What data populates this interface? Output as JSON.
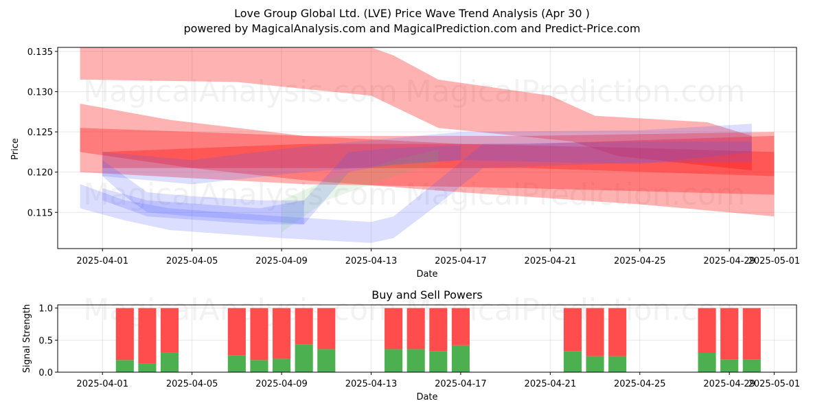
{
  "title_line1": "Love Group Global Ltd. (LVE) Price Wave Trend Analysis (Apr 30 )",
  "title_line2": "powered by MagicalAnalysis.com and MagicalPrediction.com and Predict-Price.com",
  "watermarks": [
    "MagicalAnalysis.com",
    "MagicalPrediction.com"
  ],
  "colors": {
    "red_band": "#ff0000",
    "blue_band": "#4a5cff",
    "green_band": "#66bb66",
    "buy": "#4caf50",
    "sell": "#ff4d4d"
  },
  "chart_data": [
    {
      "type": "area",
      "title": "",
      "xlabel": "Date",
      "ylabel": "Price",
      "x_range": [
        "2025-03-30",
        "2025-05-02"
      ],
      "ylim": [
        0.1105,
        0.1355
      ],
      "grid": true,
      "xticks": [
        "2025-04-01",
        "2025-04-05",
        "2025-04-09",
        "2025-04-13",
        "2025-04-17",
        "2025-04-21",
        "2025-04-25",
        "2025-04-29",
        "2025-05-01"
      ],
      "yticks": [
        0.115,
        0.12,
        0.125,
        0.13,
        0.135
      ],
      "ytick_labels": [
        "0.115",
        "0.120",
        "0.125",
        "0.130",
        "0.135"
      ],
      "bands": [
        {
          "color": "red",
          "opacity": 0.3,
          "upper": [
            [
              "2025-03-31",
              0.1355
            ],
            [
              "2025-04-13",
              0.1355
            ],
            [
              "2025-04-14",
              0.1345
            ],
            [
              "2025-04-16",
              0.1315
            ],
            [
              "2025-04-21",
              0.1295
            ],
            [
              "2025-04-23",
              0.127
            ],
            [
              "2025-04-28",
              0.1262
            ],
            [
              "2025-04-30",
              0.1245
            ]
          ],
          "lower": [
            [
              "2025-03-31",
              0.1315
            ],
            [
              "2025-04-07",
              0.1312
            ],
            [
              "2025-04-13",
              0.1295
            ],
            [
              "2025-04-16",
              0.1255
            ],
            [
              "2025-04-22",
              0.1238
            ],
            [
              "2025-04-24",
              0.122
            ],
            [
              "2025-04-30",
              0.1202
            ]
          ]
        },
        {
          "color": "red",
          "opacity": 0.3,
          "upper": [
            [
              "2025-03-31",
              0.1285
            ],
            [
              "2025-04-04",
              0.1265
            ],
            [
              "2025-04-10",
              0.1245
            ],
            [
              "2025-04-17",
              0.1235
            ],
            [
              "2025-04-25",
              0.123
            ],
            [
              "2025-05-01",
              0.1225
            ]
          ],
          "lower": [
            [
              "2025-03-31",
              0.1225
            ],
            [
              "2025-04-05",
              0.1205
            ],
            [
              "2025-04-10",
              0.119
            ],
            [
              "2025-04-17",
              0.1175
            ],
            [
              "2025-04-25",
              0.116
            ],
            [
              "2025-05-01",
              0.1145
            ]
          ]
        },
        {
          "color": "red",
          "opacity": 0.3,
          "upper": [
            [
              "2025-03-31",
              0.1255
            ],
            [
              "2025-04-10",
              0.1245
            ],
            [
              "2025-04-20",
              0.1245
            ],
            [
              "2025-05-01",
              0.125
            ]
          ],
          "lower": [
            [
              "2025-03-31",
              0.12
            ],
            [
              "2025-04-10",
              0.1185
            ],
            [
              "2025-04-20",
              0.118
            ],
            [
              "2025-05-01",
              0.1172
            ]
          ]
        },
        {
          "color": "red",
          "opacity": 0.3,
          "upper": [
            [
              "2025-04-01",
              0.1225
            ],
            [
              "2025-04-10",
              0.1235
            ],
            [
              "2025-04-20",
              0.1235
            ],
            [
              "2025-05-01",
              0.1245
            ]
          ],
          "lower": [
            [
              "2025-04-01",
              0.1205
            ],
            [
              "2025-04-10",
              0.1205
            ],
            [
              "2025-04-20",
              0.1205
            ],
            [
              "2025-05-01",
              0.1195
            ]
          ]
        },
        {
          "color": "blue",
          "opacity": 0.2,
          "upper": [
            [
              "2025-04-01",
              0.1225
            ],
            [
              "2025-04-05",
              0.1215
            ],
            [
              "2025-04-10",
              0.1232
            ],
            [
              "2025-04-17",
              0.125
            ],
            [
              "2025-04-25",
              0.1252
            ],
            [
              "2025-04-30",
              0.126
            ]
          ],
          "lower": [
            [
              "2025-04-01",
              0.1195
            ],
            [
              "2025-04-05",
              0.1185
            ],
            [
              "2025-04-10",
              0.12
            ],
            [
              "2025-04-17",
              0.1215
            ],
            [
              "2025-04-25",
              0.121
            ],
            [
              "2025-04-30",
              0.1225
            ]
          ]
        },
        {
          "color": "blue",
          "opacity": 0.2,
          "upper": [
            [
              "2025-03-31",
              0.1185
            ],
            [
              "2025-04-02",
              0.1165
            ],
            [
              "2025-04-04",
              0.1155
            ],
            [
              "2025-04-09",
              0.1145
            ],
            [
              "2025-04-13",
              0.1138
            ],
            [
              "2025-04-14",
              0.1145
            ],
            [
              "2025-04-16",
              0.119
            ],
            [
              "2025-04-18",
              0.1235
            ],
            [
              "2025-04-25",
              0.1238
            ],
            [
              "2025-04-30",
              0.1238
            ]
          ],
          "lower": [
            [
              "2025-03-31",
              0.1155
            ],
            [
              "2025-04-02",
              0.114
            ],
            [
              "2025-04-04",
              0.1128
            ],
            [
              "2025-04-09",
              0.1118
            ],
            [
              "2025-04-13",
              0.1112
            ],
            [
              "2025-04-14",
              0.1118
            ],
            [
              "2025-04-16",
              0.116
            ],
            [
              "2025-04-18",
              0.1205
            ],
            [
              "2025-04-25",
              0.1212
            ],
            [
              "2025-04-30",
              0.1212
            ]
          ]
        },
        {
          "color": "blue",
          "opacity": 0.2,
          "upper": [
            [
              "2025-04-01",
              0.118
            ],
            [
              "2025-04-03",
              0.1165
            ],
            [
              "2025-04-08",
              0.1155
            ],
            [
              "2025-04-10",
              0.1165
            ],
            [
              "2025-04-12",
              0.1225
            ],
            [
              "2025-04-14",
              0.123
            ],
            [
              "2025-04-17",
              0.1233
            ]
          ],
          "lower": [
            [
              "2025-04-01",
              0.1165
            ],
            [
              "2025-04-03",
              0.1145
            ],
            [
              "2025-04-08",
              0.1135
            ],
            [
              "2025-04-10",
              0.1135
            ],
            [
              "2025-04-12",
              0.12
            ],
            [
              "2025-04-14",
              0.121
            ],
            [
              "2025-04-17",
              0.1215
            ]
          ]
        },
        {
          "color": "green",
          "opacity": 0.15,
          "upper": [
            [
              "2025-04-09",
              0.1165
            ],
            [
              "2025-04-11",
              0.119
            ],
            [
              "2025-04-14",
              0.1215
            ],
            [
              "2025-04-16",
              0.1228
            ]
          ],
          "lower": [
            [
              "2025-04-09",
              0.1125
            ],
            [
              "2025-04-11",
              0.1165
            ],
            [
              "2025-04-14",
              0.1195
            ],
            [
              "2025-04-16",
              0.121
            ]
          ]
        },
        {
          "color": "blue",
          "opacity": 0.2,
          "upper": [
            [
              "2025-04-01",
              0.1215
            ],
            [
              "2025-04-02",
              0.1195
            ],
            [
              "2025-04-03",
              0.1175
            ],
            [
              "2025-04-05",
              0.117
            ],
            [
              "2025-04-08",
              0.1165
            ],
            [
              "2025-04-10",
              0.1165
            ]
          ],
          "lower": [
            [
              "2025-04-01",
              0.1195
            ],
            [
              "2025-04-02",
              0.117
            ],
            [
              "2025-04-03",
              0.115
            ],
            [
              "2025-04-05",
              0.1145
            ],
            [
              "2025-04-08",
              0.114
            ],
            [
              "2025-04-10",
              0.1135
            ]
          ]
        }
      ]
    },
    {
      "type": "bar",
      "title": "Buy and Sell Powers",
      "xlabel": "Date",
      "ylabel": "Signal Strength",
      "ylim": [
        0,
        1.05
      ],
      "grid": true,
      "xticks": [
        "2025-04-01",
        "2025-04-05",
        "2025-04-09",
        "2025-04-13",
        "2025-04-17",
        "2025-04-21",
        "2025-04-25",
        "2025-04-29",
        "2025-05-01"
      ],
      "yticks": [
        0.0,
        0.5,
        1.0
      ],
      "ytick_labels": [
        "0.0",
        "0.5",
        "1.0"
      ],
      "dates": [
        "2025-04-02",
        "2025-04-03",
        "2025-04-04",
        "2025-04-07",
        "2025-04-08",
        "2025-04-09",
        "2025-04-10",
        "2025-04-11",
        "2025-04-14",
        "2025-04-15",
        "2025-04-16",
        "2025-04-17",
        "2025-04-22",
        "2025-04-23",
        "2025-04-24",
        "2025-04-28",
        "2025-04-29",
        "2025-04-30"
      ],
      "series": [
        {
          "name": "Buy",
          "values": [
            0.19,
            0.13,
            0.31,
            0.26,
            0.19,
            0.21,
            0.43,
            0.36,
            0.36,
            0.36,
            0.33,
            0.42,
            0.33,
            0.25,
            0.25,
            0.3,
            0.2,
            0.2
          ]
        },
        {
          "name": "Sell",
          "values": [
            0.81,
            0.87,
            0.69,
            0.74,
            0.81,
            0.79,
            0.57,
            0.64,
            0.64,
            0.64,
            0.67,
            0.58,
            0.67,
            0.75,
            0.75,
            0.7,
            0.8,
            0.8
          ]
        }
      ]
    }
  ]
}
